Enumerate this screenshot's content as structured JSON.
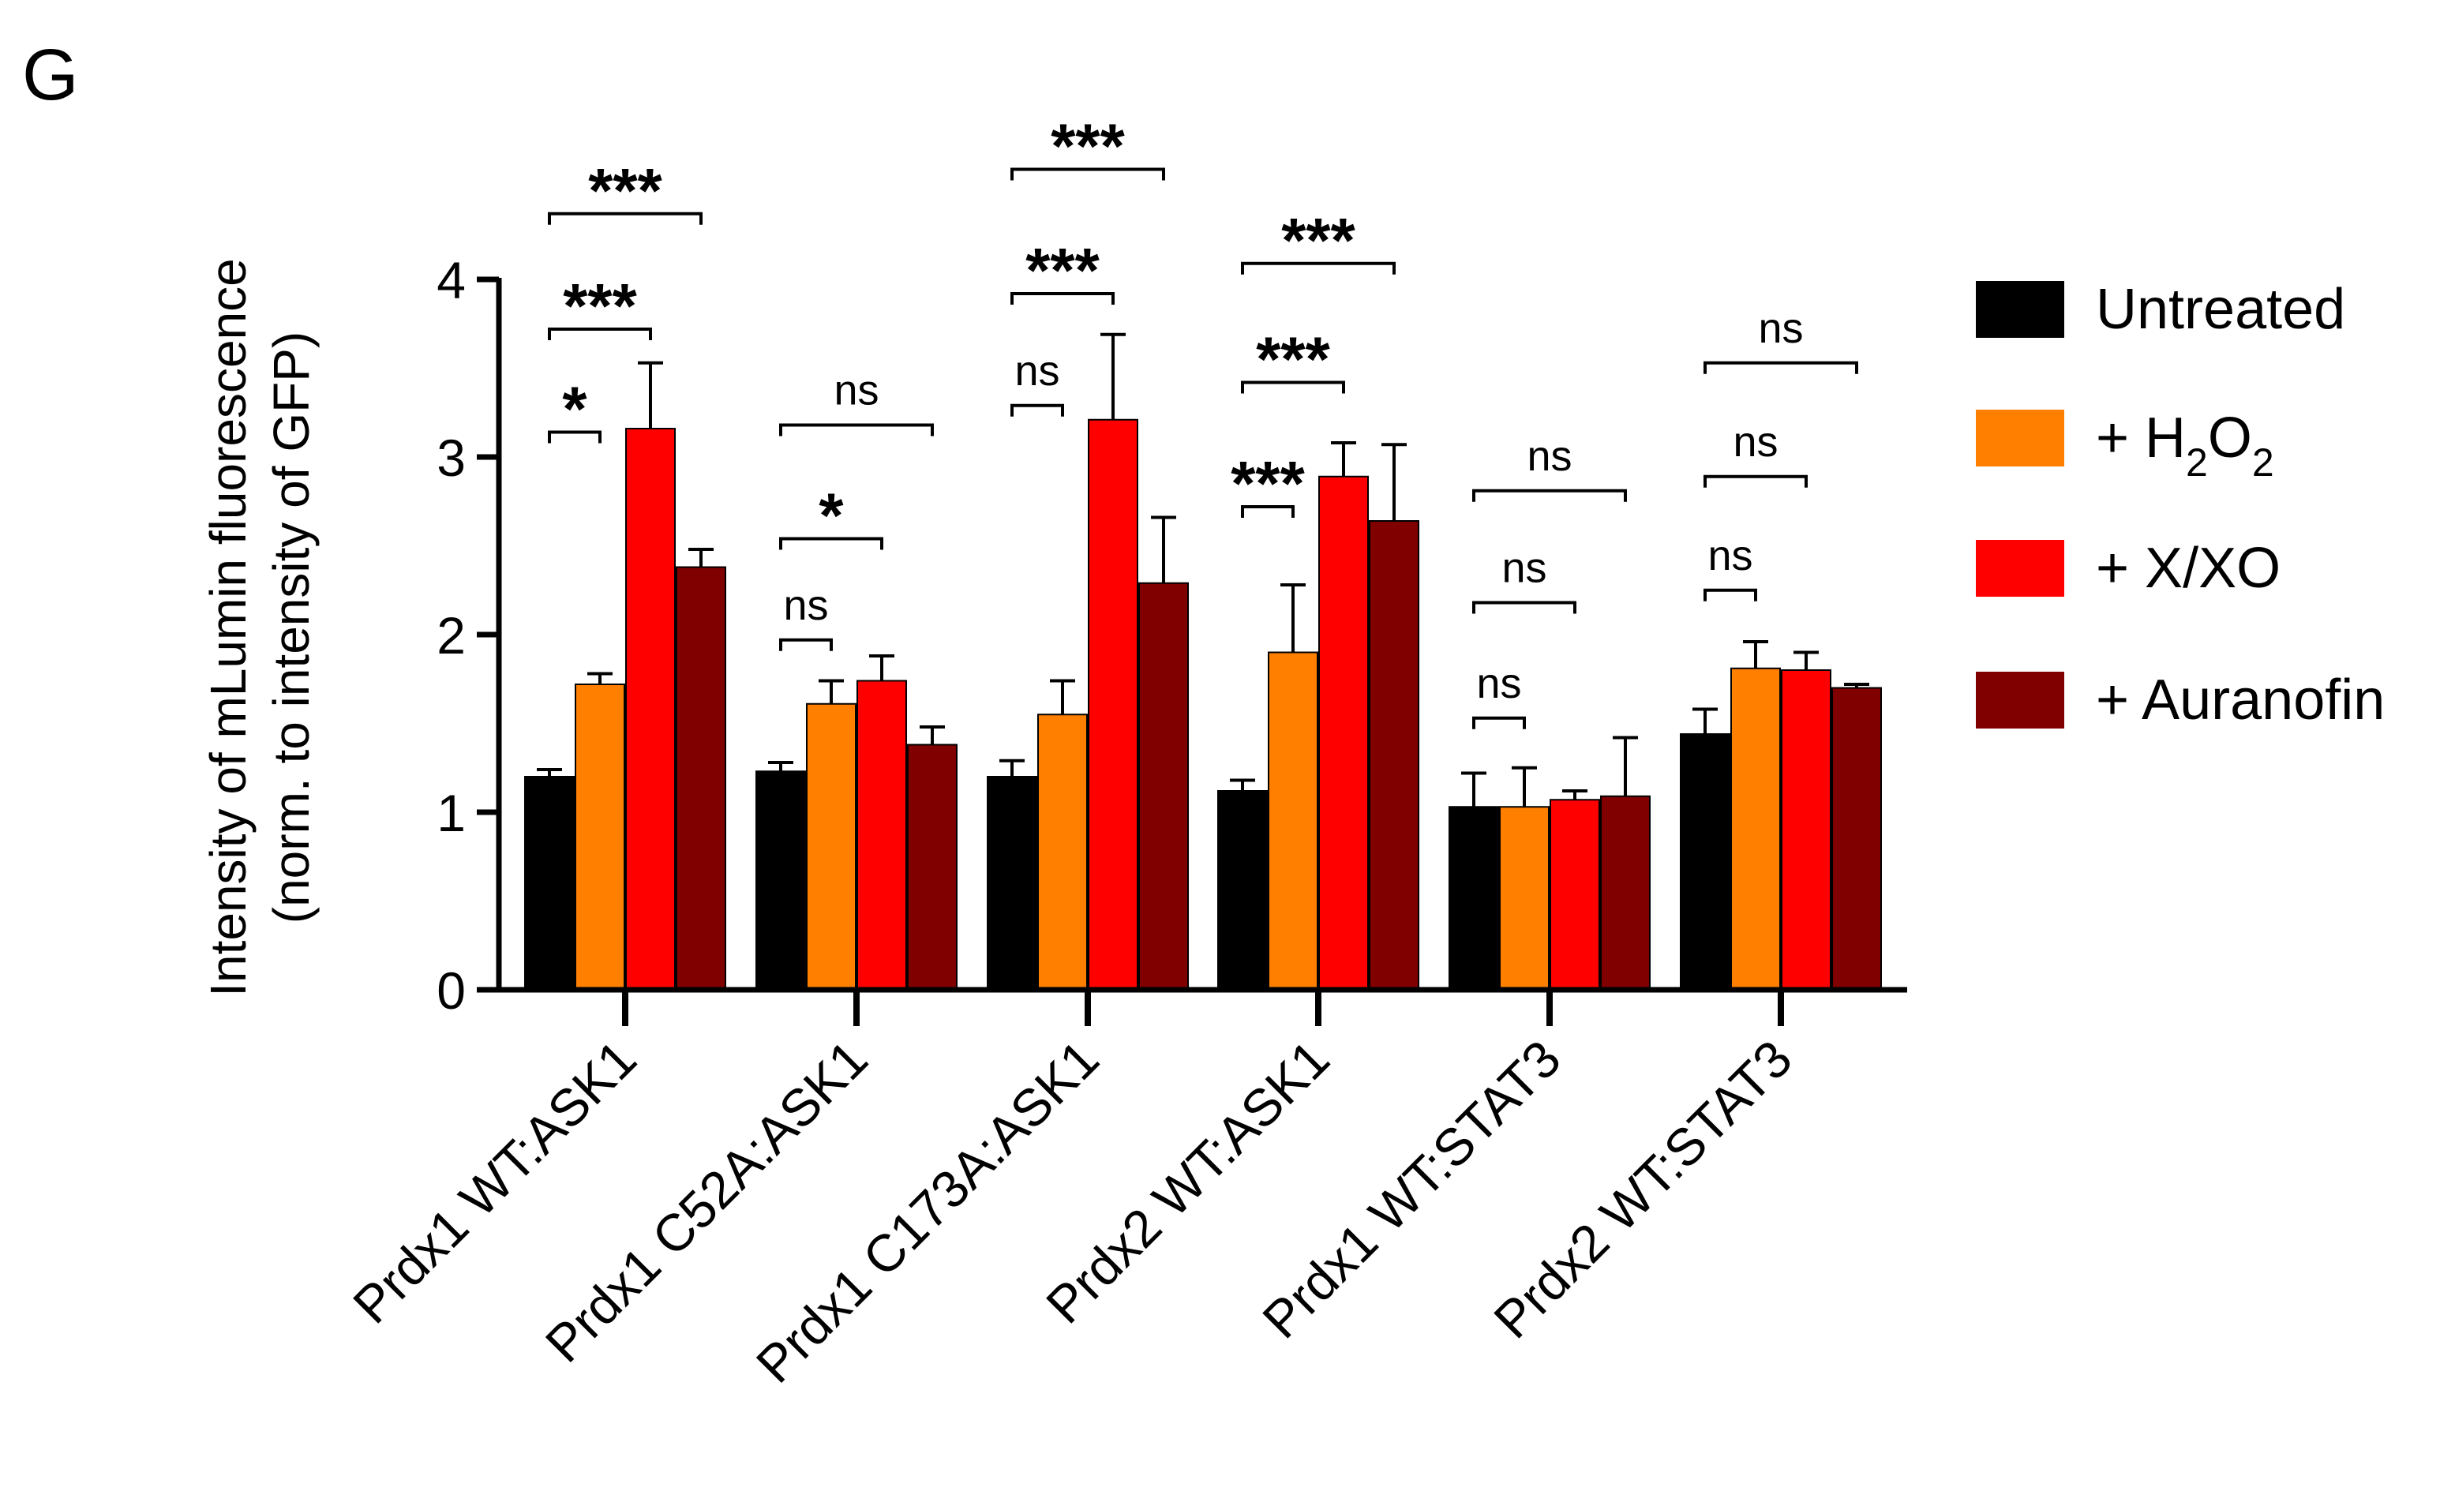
{
  "panel_label": "G",
  "chart_data": {
    "type": "bar",
    "title": "",
    "xlabel": "",
    "ylabel": "Intensity of mLumin fluorescence",
    "ylabel_line2": "(norm. to intensity of GFP)",
    "ylim": [
      0,
      4
    ],
    "yticks": [
      0,
      1,
      2,
      3,
      4
    ],
    "grid": false,
    "legend_position": "right",
    "categories": [
      "Prdx1 WT:ASK1",
      "Prdx1 C52A:ASK1",
      "Prdx1 C173A:ASK1",
      "Prdx2 WT:ASK1",
      "Prdx1 WT:STAT3",
      "Prdx2 WT:STAT3"
    ],
    "series": [
      {
        "name": "Untreated",
        "color": "#000000",
        "values": [
          1.2,
          1.23,
          1.2,
          1.12,
          1.03,
          1.44
        ],
        "errors": [
          0.04,
          0.05,
          0.09,
          0.06,
          0.19,
          0.14
        ]
      },
      {
        "name": "+ H2O2",
        "legend_main": "+ H",
        "legend_sub1": "2",
        "legend_mid": "O",
        "legend_sub2": "2",
        "color": "#ff8000",
        "values": [
          1.72,
          1.61,
          1.55,
          1.9,
          1.03,
          1.81
        ],
        "errors": [
          0.06,
          0.13,
          0.19,
          0.38,
          0.22,
          0.15
        ]
      },
      {
        "name": "+ X/XO",
        "color": "#ff0000",
        "values": [
          3.16,
          1.74,
          3.21,
          2.89,
          1.07,
          1.8
        ],
        "errors": [
          0.37,
          0.14,
          0.48,
          0.19,
          0.05,
          0.1
        ]
      },
      {
        "name": "+ Auranofin",
        "color": "#800000",
        "values": [
          2.38,
          1.38,
          2.29,
          2.64,
          1.09,
          1.7
        ],
        "errors": [
          0.1,
          0.1,
          0.37,
          0.43,
          0.33,
          0.02
        ]
      }
    ],
    "annotations": [
      {
        "group": 0,
        "from": 0,
        "to": 1,
        "height": 3.14,
        "label": "*"
      },
      {
        "group": 0,
        "from": 0,
        "to": 2,
        "height": 3.72,
        "label": "***"
      },
      {
        "group": 0,
        "from": 0,
        "to": 3,
        "height": 4.37,
        "label": "***"
      },
      {
        "group": 1,
        "from": 0,
        "to": 1,
        "height": 1.97,
        "label": "ns"
      },
      {
        "group": 1,
        "from": 0,
        "to": 2,
        "height": 2.54,
        "label": "*"
      },
      {
        "group": 1,
        "from": 0,
        "to": 3,
        "height": 3.18,
        "label": "ns"
      },
      {
        "group": 2,
        "from": 0,
        "to": 1,
        "height": 3.29,
        "label": "ns"
      },
      {
        "group": 2,
        "from": 0,
        "to": 2,
        "height": 3.92,
        "label": "***"
      },
      {
        "group": 2,
        "from": 0,
        "to": 3,
        "height": 4.62,
        "label": "***"
      },
      {
        "group": 3,
        "from": 0,
        "to": 1,
        "height": 2.72,
        "label": "***"
      },
      {
        "group": 3,
        "from": 0,
        "to": 2,
        "height": 3.42,
        "label": "***"
      },
      {
        "group": 3,
        "from": 0,
        "to": 3,
        "height": 4.09,
        "label": "***"
      },
      {
        "group": 4,
        "from": 0,
        "to": 1,
        "height": 1.53,
        "label": "ns"
      },
      {
        "group": 4,
        "from": 0,
        "to": 2,
        "height": 2.18,
        "label": "ns"
      },
      {
        "group": 4,
        "from": 0,
        "to": 3,
        "height": 2.81,
        "label": "ns"
      },
      {
        "group": 5,
        "from": 0,
        "to": 1,
        "height": 2.25,
        "label": "ns"
      },
      {
        "group": 5,
        "from": 0,
        "to": 2,
        "height": 2.89,
        "label": "ns"
      },
      {
        "group": 5,
        "from": 0,
        "to": 3,
        "height": 3.53,
        "label": "ns"
      }
    ]
  }
}
